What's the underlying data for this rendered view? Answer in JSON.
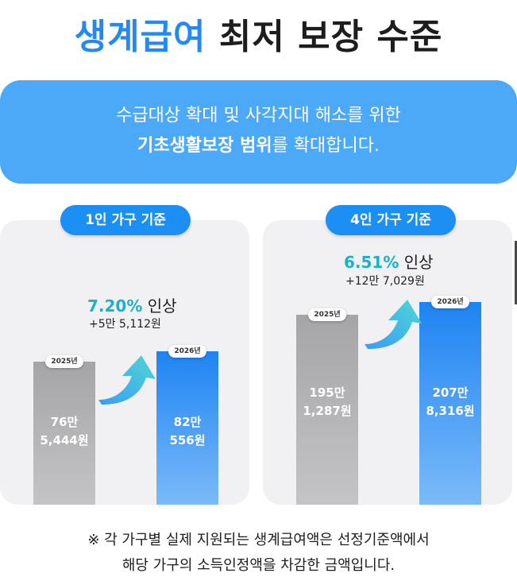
{
  "header": {
    "title_highlight": "생계급여",
    "title_rest": "최저 보장 수준"
  },
  "banner": {
    "line1": "수급대상 확대 및 사각지대 해소를 위한",
    "line2_bold": "기초생활보장 범위",
    "line2_rest": "를 확대합니다."
  },
  "colors": {
    "accent": "#2389f4",
    "banner": "#4ba9f7",
    "increase": "#19b2c9",
    "bar_old": "#a5a5a7",
    "bar_new": "#1e84f2"
  },
  "chart_data": [
    {
      "type": "bar",
      "title": "1인 가구 기준",
      "categories": [
        "2025년",
        "2026년"
      ],
      "values": [
        765444,
        820556
      ],
      "value_labels": [
        [
          "76만",
          "5,444원"
        ],
        [
          "82만",
          "556원"
        ]
      ],
      "increase_pct": "7.20%",
      "increase_word": "인상",
      "increase_amount": "+5만 5,112원"
    },
    {
      "type": "bar",
      "title": "4인 가구 기준",
      "categories": [
        "2025년",
        "2026년"
      ],
      "values": [
        1951287,
        2078316
      ],
      "value_labels": [
        [
          "195만",
          "1,287원"
        ],
        [
          "207만",
          "8,316원"
        ]
      ],
      "increase_pct": "6.51%",
      "increase_word": "인상",
      "increase_amount": "+12만 7,029원"
    }
  ],
  "footnote": {
    "line1": "※ 각 가구별 실제 지원되는 생계급여액은 선정기준액에서",
    "line2": "해당 가구의 소득인정액을 차감한 금액입니다."
  },
  "icons": {
    "arrow": "curved-up-arrow-icon"
  }
}
